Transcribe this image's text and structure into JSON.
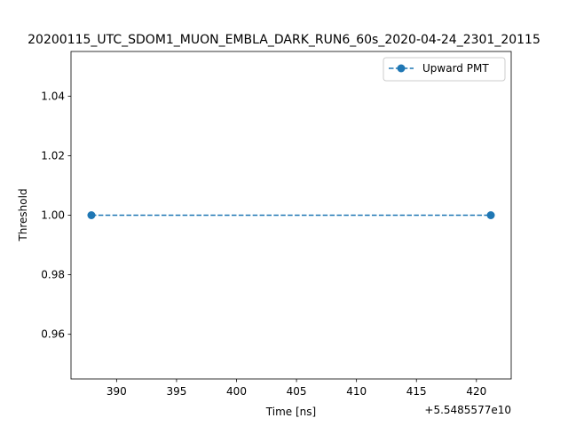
{
  "chart_data": {
    "type": "line",
    "title": "20200115_UTC_SDOM1_MUON_EMBLA_DARK_RUN6_60s_2020-04-24_2301_20115",
    "xlabel": "Time [ns]",
    "ylabel": "Threshold",
    "x_offset_label": "+5.5485577e10",
    "x_ticks": [
      390,
      395,
      400,
      405,
      410,
      415,
      420
    ],
    "y_ticks": [
      0.96,
      0.98,
      1.0,
      1.02,
      1.04
    ],
    "y_tick_labels": [
      "0.96",
      "0.98",
      "1.00",
      "1.02",
      "1.04"
    ],
    "xlim": [
      386.2,
      422.9
    ],
    "ylim": [
      0.945,
      1.055
    ],
    "legend_position": "top-right",
    "series": [
      {
        "name": "Upward PMT",
        "color": "#1f77b4",
        "line_style": "dashed",
        "marker": "circle",
        "x": [
          387.9,
          421.2
        ],
        "y": [
          1.0,
          1.0
        ]
      }
    ]
  }
}
